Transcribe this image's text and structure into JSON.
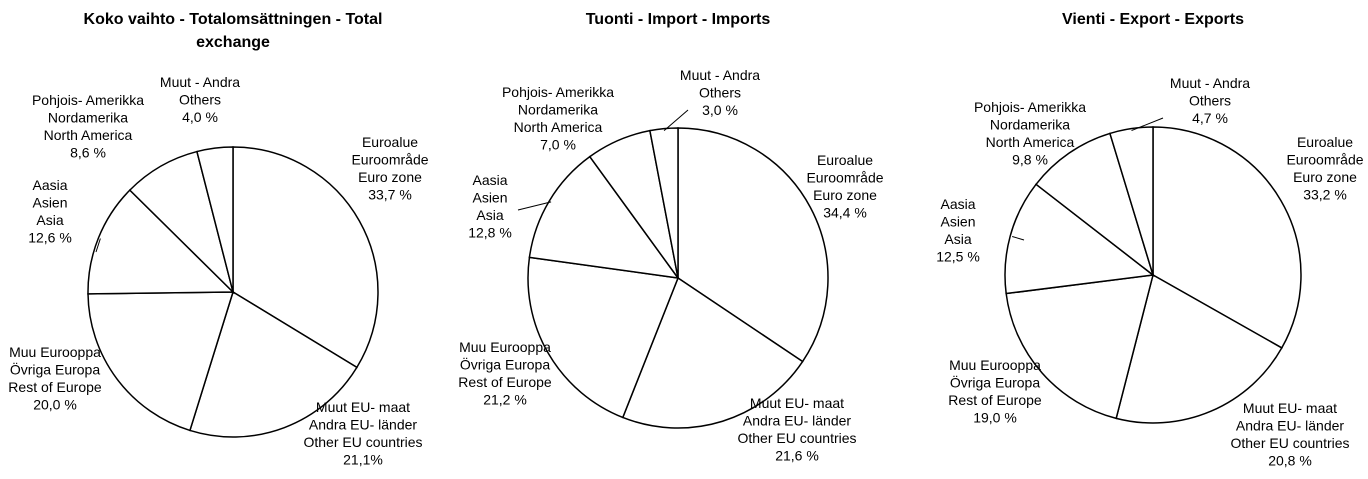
{
  "chart_data": [
    {
      "type": "pie",
      "title": "Koko vaihto - Totalomsättningen - Total exchange",
      "categories": [
        [
          "Euroalue",
          "Euroområde",
          "Euro zone"
        ],
        [
          "Muut EU- maat",
          "Andra EU- länder",
          "Other EU countries"
        ],
        [
          "Muu Eurooppa",
          "Övriga Europa",
          "Rest of Europe"
        ],
        [
          "Aasia",
          "Asien",
          "Asia"
        ],
        [
          "Pohjois- Amerikka",
          "Nordamerika",
          "North America"
        ],
        [
          "Muut - Andra",
          "Others"
        ]
      ],
      "values": [
        33.7,
        21.1,
        20.0,
        12.6,
        8.6,
        4.0
      ],
      "value_labels": [
        "33,7 %",
        "21,1%",
        "20,0 %",
        "12,6 %",
        "8,6 %",
        "4,0 %"
      ],
      "color": "#ffffff"
    },
    {
      "type": "pie",
      "title": "Tuonti - Import - Imports",
      "categories": [
        [
          "Euroalue",
          "Euroområde",
          "Euro zone"
        ],
        [
          "Muut EU- maat",
          "Andra EU- länder",
          "Other EU countries"
        ],
        [
          "Muu Eurooppa",
          "Övriga Europa",
          "Rest of Europe"
        ],
        [
          "Aasia",
          "Asien",
          "Asia"
        ],
        [
          "Pohjois- Amerikka",
          "Nordamerika",
          "North America"
        ],
        [
          "Muut - Andra",
          "Others"
        ]
      ],
      "values": [
        34.4,
        21.6,
        21.2,
        12.8,
        7.0,
        3.0
      ],
      "value_labels": [
        "34,4 %",
        "21,6 %",
        "21,2 %",
        "12,8 %",
        "7,0 %",
        "3,0 %"
      ],
      "color": "#ffffff"
    },
    {
      "type": "pie",
      "title": "Vienti - Export - Exports",
      "categories": [
        [
          "Euroalue",
          "Euroområde",
          "Euro zone"
        ],
        [
          "Muut EU- maat",
          "Andra EU- länder",
          "Other EU countries"
        ],
        [
          "Muu Eurooppa",
          "Övriga Europa",
          "Rest of Europe"
        ],
        [
          "Aasia",
          "Asien",
          "Asia"
        ],
        [
          "Pohjois- Amerikka",
          "Nordamerika",
          "North America"
        ],
        [
          "Muut - Andra",
          "Others"
        ]
      ],
      "values": [
        33.2,
        20.8,
        19.0,
        12.5,
        9.8,
        4.7
      ],
      "value_labels": [
        "33,2 %",
        "20,8 %",
        "19,0 %",
        "12,5 %",
        "9,8 %",
        "4,7 %"
      ],
      "color": "#ffffff"
    }
  ]
}
